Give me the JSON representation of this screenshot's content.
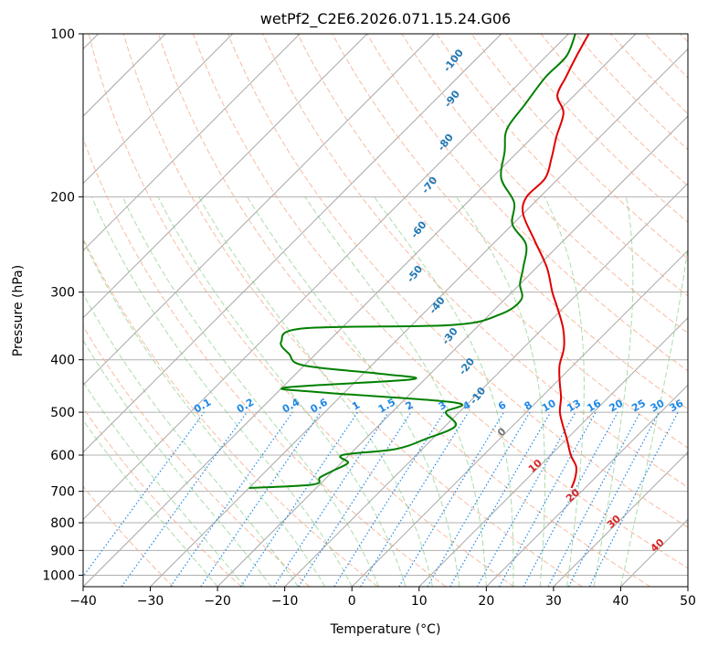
{
  "chart_data": {
    "type": "line",
    "title": "wetPf2_C2E6.2026.071.15.24.G06",
    "xlabel": "Temperature (°C)",
    "ylabel": "Pressure (hPa)",
    "xlim": [
      -40,
      50
    ],
    "ylim_hpa": [
      1050,
      100
    ],
    "x_ticks": [
      -40,
      -30,
      -20,
      -10,
      0,
      10,
      20,
      30,
      40,
      50
    ],
    "y_ticks": [
      100,
      200,
      300,
      400,
      500,
      600,
      700,
      800,
      900,
      1000
    ],
    "skew": 35,
    "colors": {
      "temperature": "#e00000",
      "dewpoint": "#008000",
      "dry_adiabat": "#f4a582",
      "moist_adiabat": "#7fc97f",
      "mixing_ratio": "#1e88e5",
      "isotherm": "#9e9e9e",
      "isotherm_label": "#d62728",
      "adiabat_label": "#1f77b4"
    },
    "series": [
      {
        "name": "Temperature",
        "points": [
          {
            "p": 690,
            "t": 18.0
          },
          {
            "p": 660,
            "t": 17.0
          },
          {
            "p": 630,
            "t": 15.5
          },
          {
            "p": 600,
            "t": 13.0
          },
          {
            "p": 560,
            "t": 10.0
          },
          {
            "p": 530,
            "t": 7.5
          },
          {
            "p": 500,
            "t": 5.0
          },
          {
            "p": 470,
            "t": 3.0
          },
          {
            "p": 440,
            "t": 0.5
          },
          {
            "p": 410,
            "t": -2.0
          },
          {
            "p": 380,
            "t": -4.0
          },
          {
            "p": 350,
            "t": -7.0
          },
          {
            "p": 320,
            "t": -11.0
          },
          {
            "p": 300,
            "t": -14.0
          },
          {
            "p": 270,
            "t": -18.5
          },
          {
            "p": 240,
            "t": -24.5
          },
          {
            "p": 215,
            "t": -30.0
          },
          {
            "p": 200,
            "t": -32.0
          },
          {
            "p": 185,
            "t": -32.0
          },
          {
            "p": 170,
            "t": -34.0
          },
          {
            "p": 155,
            "t": -36.5
          },
          {
            "p": 140,
            "t": -39.0
          },
          {
            "p": 130,
            "t": -42.5
          },
          {
            "p": 120,
            "t": -44.0
          },
          {
            "p": 110,
            "t": -45.5
          },
          {
            "p": 100,
            "t": -47.0
          }
        ]
      },
      {
        "name": "Dewpoint",
        "points": [
          {
            "p": 690,
            "t": -30.0
          },
          {
            "p": 680,
            "t": -21.0
          },
          {
            "p": 660,
            "t": -21.0
          },
          {
            "p": 640,
            "t": -20.0
          },
          {
            "p": 620,
            "t": -19.0
          },
          {
            "p": 600,
            "t": -21.0
          },
          {
            "p": 585,
            "t": -14.0
          },
          {
            "p": 560,
            "t": -11.0
          },
          {
            "p": 530,
            "t": -8.5
          },
          {
            "p": 500,
            "t": -12.0
          },
          {
            "p": 480,
            "t": -12.0
          },
          {
            "p": 460,
            "t": -33.0
          },
          {
            "p": 450,
            "t": -39.5
          },
          {
            "p": 435,
            "t": -22.0
          },
          {
            "p": 425,
            "t": -27.0
          },
          {
            "p": 410,
            "t": -40.0
          },
          {
            "p": 390,
            "t": -44.0
          },
          {
            "p": 370,
            "t": -47.0
          },
          {
            "p": 350,
            "t": -45.5
          },
          {
            "p": 345,
            "t": -24.0
          },
          {
            "p": 330,
            "t": -18.5
          },
          {
            "p": 310,
            "t": -17.5
          },
          {
            "p": 290,
            "t": -20.0
          },
          {
            "p": 270,
            "t": -22.0
          },
          {
            "p": 245,
            "t": -25.0
          },
          {
            "p": 225,
            "t": -30.0
          },
          {
            "p": 205,
            "t": -33.0
          },
          {
            "p": 185,
            "t": -38.5
          },
          {
            "p": 165,
            "t": -42.0
          },
          {
            "p": 150,
            "t": -45.0
          },
          {
            "p": 135,
            "t": -46.0
          },
          {
            "p": 120,
            "t": -47.0
          },
          {
            "p": 110,
            "t": -47.0
          },
          {
            "p": 100,
            "t": -49.0
          }
        ]
      }
    ],
    "mixing_ratio_labels": [
      "0.1",
      "0.2",
      "0.4",
      "0.6",
      "1",
      "1.5",
      "2",
      "3",
      "4",
      "6",
      "8",
      "10",
      "13",
      "16",
      "20",
      "25",
      "30",
      "36"
    ],
    "isotherm_labels": [
      "0",
      "10",
      "20",
      "30",
      "40"
    ],
    "dry_adiabat_labels": [
      "-100",
      "-90",
      "-80",
      "-70",
      "-60",
      "-50",
      "-40",
      "-30",
      "-20",
      "-10"
    ]
  }
}
